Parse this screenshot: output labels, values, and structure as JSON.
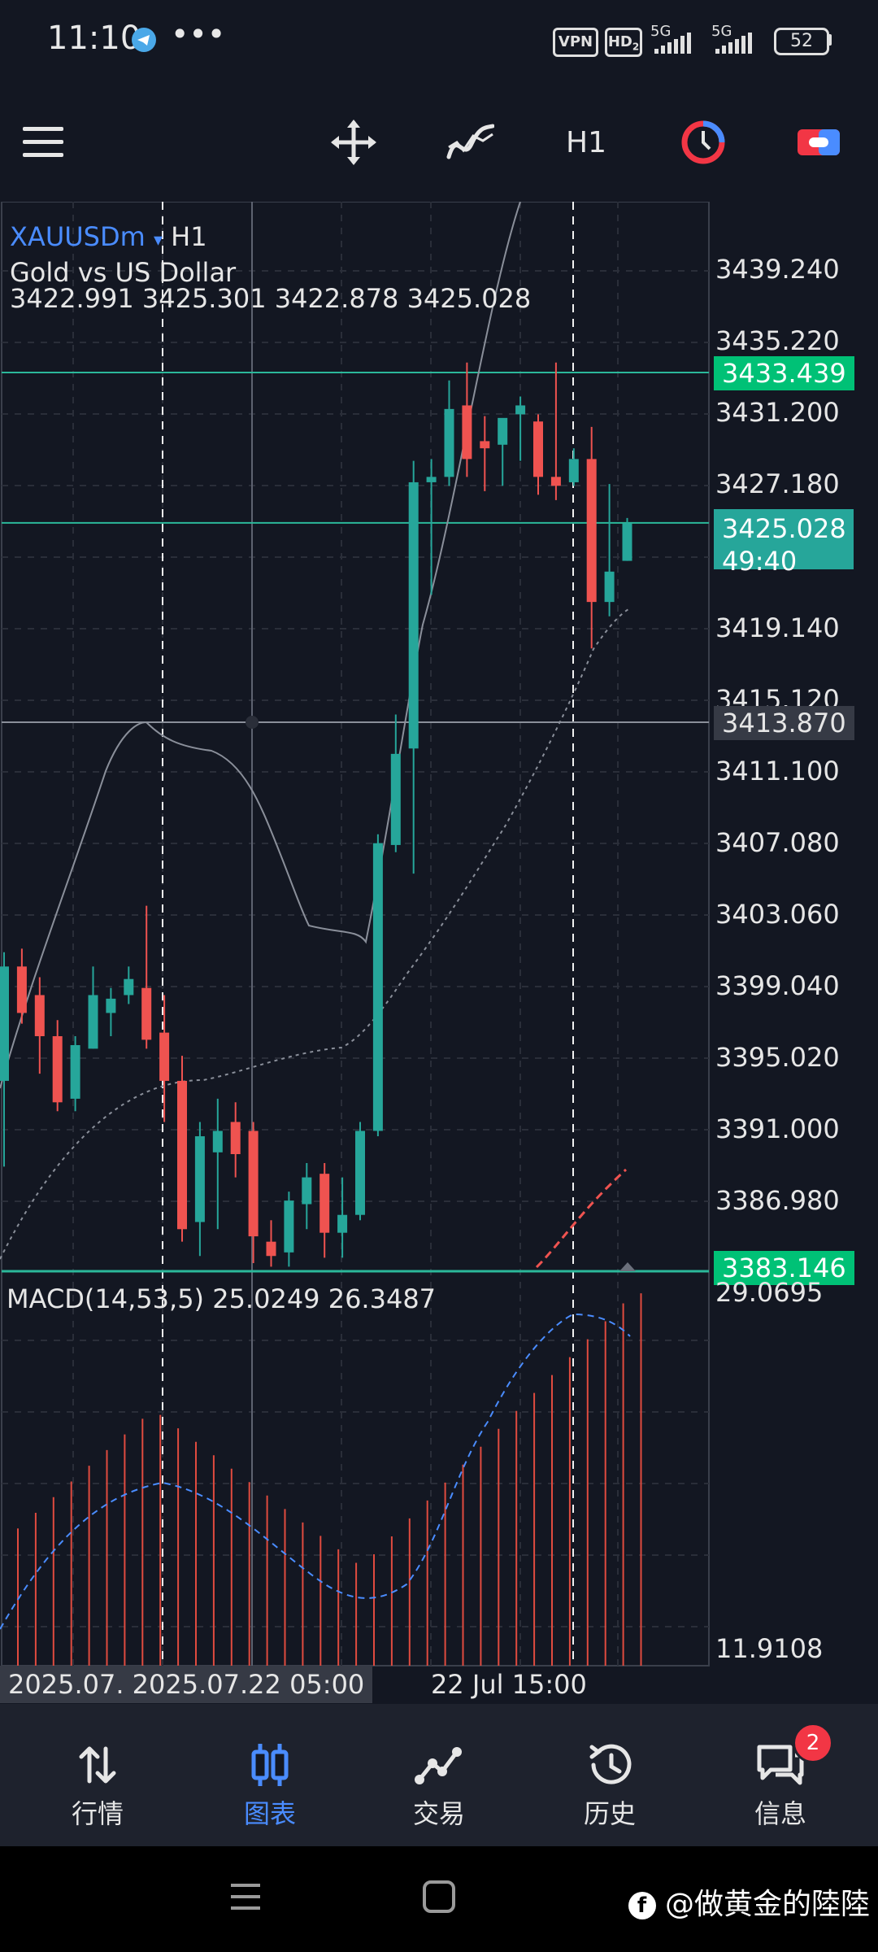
{
  "status_bar": {
    "time": "11:10",
    "more": "•••",
    "vpn": "VPN",
    "hd": "HD",
    "hd_sub": "2",
    "net1": "5G",
    "net2": "5G",
    "battery": "52"
  },
  "toolbar": {
    "icons": [
      "menu-icon",
      "crosshair-move-icon",
      "indicator-icon",
      "timeframe",
      "history-clock-icon",
      "trade-icon"
    ],
    "timeframe": "H1"
  },
  "chart": {
    "symbol": "XAUUSDm",
    "symbol_dropdown": "▾",
    "timeframe": "H1",
    "description": "Gold vs US Dollar",
    "ohlc_text": "3422.991 3425.301 3422.878 3425.028",
    "price_ticks": [
      "3439.240",
      "3435.220",
      "3431.200",
      "3427.180",
      "3419.140",
      "3415.120",
      "3411.100",
      "3407.080",
      "3403.060",
      "3399.040",
      "3395.020",
      "3391.000",
      "3386.980"
    ],
    "badge_upper_line": "3433.439",
    "badge_current_price": "3425.028",
    "badge_countdown": "49:40",
    "badge_crosshair": "3413.870",
    "badge_lower_line": "3383.146",
    "macd_label": "MACD(14,53,5) 25.0249 26.3487",
    "macd_ticks": [
      "29.0695",
      "11.9108"
    ],
    "time_label_left": "2025.07.",
    "time_label_main": "2025.07.22 05:00",
    "time_label_right": "22 Jul 15:00",
    "colors": {
      "background": "#131722",
      "bull": "#26a69a",
      "bear": "#ef5350",
      "grid": "#2a2e39",
      "level_line": "#2bb89a",
      "badge_green": "#00c176",
      "badge_teal": "#26a69a",
      "macd_signal": "#4a8cff"
    }
  },
  "chart_data": {
    "type": "candlestick",
    "symbol": "XAUUSDm",
    "timeframe": "H1",
    "y_range": [
      3383.146,
      3443.0
    ],
    "candles": [
      {
        "o": 3393.8,
        "h": 3401.0,
        "l": 3389.0,
        "c": 3400.2
      },
      {
        "o": 3400.2,
        "h": 3401.2,
        "l": 3397.0,
        "c": 3397.6
      },
      {
        "o": 3398.6,
        "h": 3399.6,
        "l": 3394.2,
        "c": 3396.3
      },
      {
        "o": 3396.3,
        "h": 3397.2,
        "l": 3392.1,
        "c": 3392.6
      },
      {
        "o": 3392.8,
        "h": 3396.3,
        "l": 3392.1,
        "c": 3395.8
      },
      {
        "o": 3395.6,
        "h": 3400.2,
        "l": 3395.6,
        "c": 3398.6
      },
      {
        "o": 3397.6,
        "h": 3399.0,
        "l": 3396.3,
        "c": 3398.4
      },
      {
        "o": 3398.6,
        "h": 3400.2,
        "l": 3398.1,
        "c": 3399.5
      },
      {
        "o": 3399.0,
        "h": 3403.6,
        "l": 3395.6,
        "c": 3396.1
      },
      {
        "o": 3396.5,
        "h": 3398.6,
        "l": 3391.5,
        "c": 3393.8
      },
      {
        "o": 3393.8,
        "h": 3395.2,
        "l": 3384.8,
        "c": 3385.5
      },
      {
        "o": 3385.9,
        "h": 3391.5,
        "l": 3384.0,
        "c": 3390.7
      },
      {
        "o": 3389.8,
        "h": 3392.8,
        "l": 3385.5,
        "c": 3391.0
      },
      {
        "o": 3391.5,
        "h": 3392.6,
        "l": 3388.4,
        "c": 3389.7
      },
      {
        "o": 3391.0,
        "h": 3391.5,
        "l": 3383.6,
        "c": 3385.1
      },
      {
        "o": 3384.8,
        "h": 3386.0,
        "l": 3383.4,
        "c": 3384.0
      },
      {
        "o": 3384.2,
        "h": 3387.6,
        "l": 3383.4,
        "c": 3387.1
      },
      {
        "o": 3386.9,
        "h": 3389.2,
        "l": 3385.5,
        "c": 3388.4
      },
      {
        "o": 3388.6,
        "h": 3389.2,
        "l": 3383.9,
        "c": 3385.3
      },
      {
        "o": 3385.3,
        "h": 3388.4,
        "l": 3383.9,
        "c": 3386.3
      },
      {
        "o": 3386.3,
        "h": 3391.5,
        "l": 3386.0,
        "c": 3391.0
      },
      {
        "o": 3391.0,
        "h": 3407.6,
        "l": 3390.7,
        "c": 3407.1
      },
      {
        "o": 3407.0,
        "h": 3414.3,
        "l": 3406.6,
        "c": 3412.1
      },
      {
        "o": 3412.4,
        "h": 3428.5,
        "l": 3405.4,
        "c": 3427.3
      },
      {
        "o": 3427.3,
        "h": 3428.6,
        "l": 3421.0,
        "c": 3427.6
      },
      {
        "o": 3427.6,
        "h": 3433.0,
        "l": 3427.1,
        "c": 3431.4
      },
      {
        "o": 3431.6,
        "h": 3434.0,
        "l": 3427.6,
        "c": 3428.6
      },
      {
        "o": 3429.6,
        "h": 3431.0,
        "l": 3426.8,
        "c": 3429.2
      },
      {
        "o": 3429.4,
        "h": 3430.7,
        "l": 3427.1,
        "c": 3430.9
      },
      {
        "o": 3431.1,
        "h": 3432.1,
        "l": 3428.5,
        "c": 3431.6
      },
      {
        "o": 3430.7,
        "h": 3431.1,
        "l": 3426.6,
        "c": 3427.6
      },
      {
        "o": 3427.6,
        "h": 3434.0,
        "l": 3426.3,
        "c": 3427.1
      },
      {
        "o": 3427.3,
        "h": 3429.2,
        "l": 3427.1,
        "c": 3428.6
      },
      {
        "o": 3428.6,
        "h": 3430.4,
        "l": 3418.0,
        "c": 3420.6
      },
      {
        "o": 3420.6,
        "h": 3427.2,
        "l": 3419.8,
        "c": 3422.3
      },
      {
        "o": 3422.9,
        "h": 3425.3,
        "l": 3422.9,
        "c": 3425.0
      }
    ],
    "levels": [
      3433.439,
      3425.028,
      3413.87,
      3383.146
    ],
    "macd": {
      "label": "MACD(14,53,5)",
      "main": 25.0249,
      "signal": 26.3487,
      "y_ticks": [
        29.0695,
        11.9108
      ]
    }
  },
  "bottom_nav": {
    "items": [
      {
        "label": "行情",
        "icon": "quotes-arrows-icon"
      },
      {
        "label": "图表",
        "icon": "chart-candles-icon"
      },
      {
        "label": "交易",
        "icon": "trade-line-icon"
      },
      {
        "label": "历史",
        "icon": "history-icon"
      },
      {
        "label": "信息",
        "icon": "messages-icon"
      }
    ],
    "active": "图表",
    "messages_badge": "2"
  },
  "watermark": "@做黄金的陸陸"
}
